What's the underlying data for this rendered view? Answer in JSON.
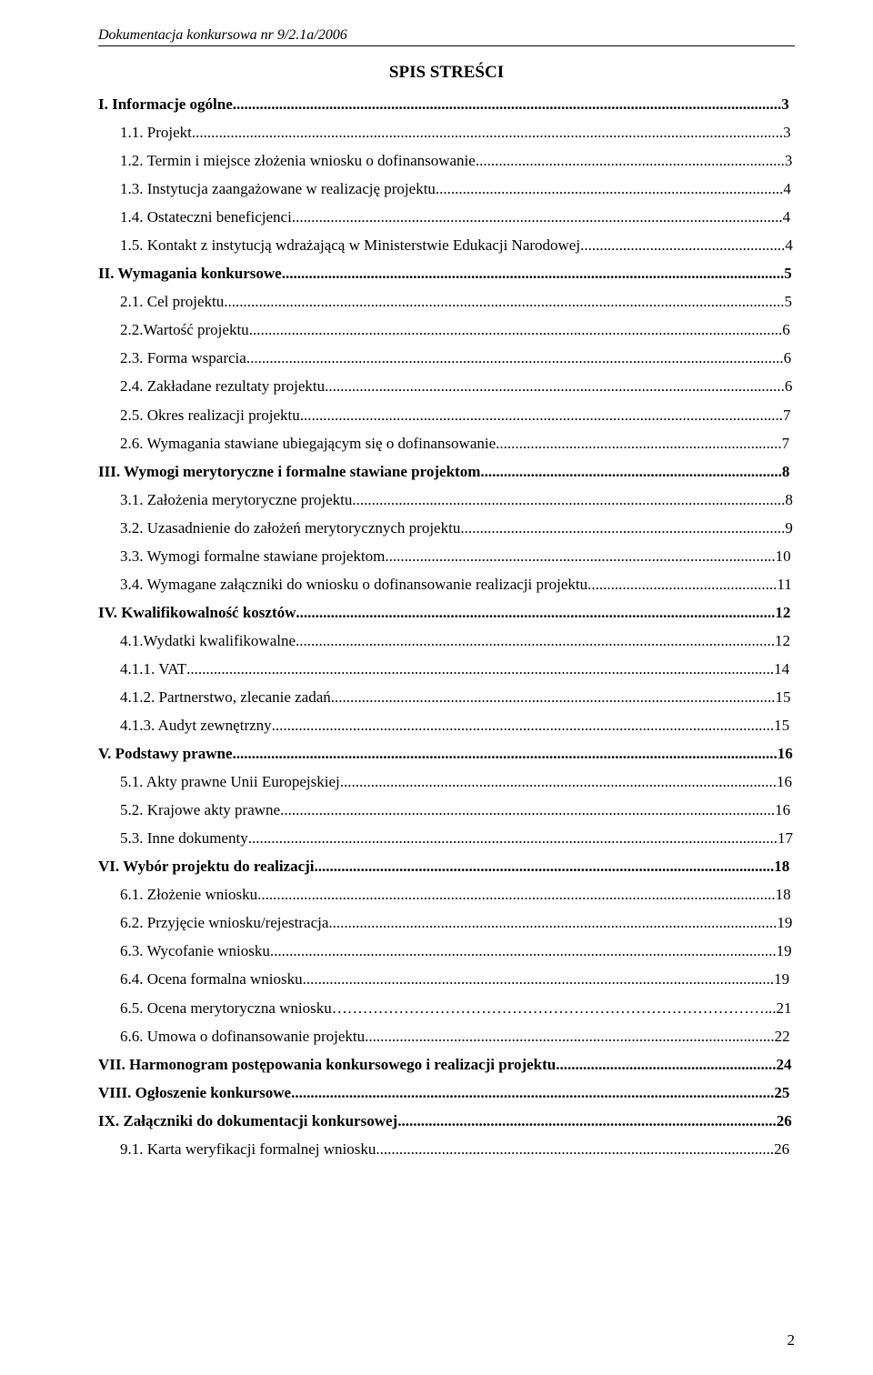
{
  "header": "Dokumentacja konkursowa nr 9/2.1a/2006",
  "title": "SPIS STREŚCI",
  "page_number": "2",
  "toc": [
    {
      "label": "I. Informacje ogólne",
      "page": "3",
      "bold": true,
      "indent": 0
    },
    {
      "label": "1.1. Projekt",
      "page": "3",
      "bold": false,
      "indent": 1
    },
    {
      "label": "1.2. Termin i miejsce złożenia wniosku o dofinansowanie",
      "page": "3",
      "bold": false,
      "indent": 1
    },
    {
      "label": "1.3. Instytucja zaangażowane w realizację projektu",
      "page": "4",
      "bold": false,
      "indent": 1
    },
    {
      "label": "1.4. Ostateczni beneficjenci",
      "page": "4",
      "bold": false,
      "indent": 1
    },
    {
      "label": "1.5. Kontakt z instytucją wdrażającą w Ministerstwie Edukacji Narodowej",
      "page": "4",
      "bold": false,
      "indent": 1
    },
    {
      "label": "II. Wymagania konkursowe",
      "page": "5",
      "bold": true,
      "indent": 0
    },
    {
      "label": "2.1. Cel projektu",
      "page": "5",
      "bold": false,
      "indent": 1
    },
    {
      "label": "2.2.Wartość projektu",
      "page": "6",
      "bold": false,
      "indent": 1
    },
    {
      "label": "2.3. Forma wsparcia",
      "page": "6",
      "bold": false,
      "indent": 1
    },
    {
      "label": "2.4. Zakładane rezultaty projektu",
      "page": "6",
      "bold": false,
      "indent": 1
    },
    {
      "label": "2.5. Okres realizacji projektu",
      "page": "7",
      "bold": false,
      "indent": 1
    },
    {
      "label": "2.6. Wymagania stawiane ubiegającym się o dofinansowanie",
      "page": "7",
      "bold": false,
      "indent": 1
    },
    {
      "label": "III. Wymogi merytoryczne i formalne stawiane projektom",
      "page": "8",
      "bold": true,
      "indent": 0
    },
    {
      "label": "3.1. Założenia merytoryczne projektu",
      "page": "8",
      "bold": false,
      "indent": 1
    },
    {
      "label": "3.2. Uzasadnienie do założeń merytorycznych projektu",
      "page": "9",
      "bold": false,
      "indent": 1
    },
    {
      "label": "3.3. Wymogi formalne stawiane projektom",
      "page": "10",
      "bold": false,
      "indent": 1
    },
    {
      "label": "3.4. Wymagane załączniki do wniosku o dofinansowanie realizacji projektu",
      "page": "11",
      "bold": false,
      "indent": 1
    },
    {
      "label": "IV. Kwalifikowalność kosztów",
      "page": "12",
      "bold": true,
      "indent": 0
    },
    {
      "label": "4.1.Wydatki kwalifikowalne",
      "page": "12",
      "bold": false,
      "indent": 1
    },
    {
      "label": "4.1.1. VAT",
      "page": "14",
      "bold": false,
      "indent": 1
    },
    {
      "label": "4.1.2. Partnerstwo, zlecanie zadań",
      "page": "15",
      "bold": false,
      "indent": 1
    },
    {
      "label": "4.1.3. Audyt zewnętrzny",
      "page": "15",
      "bold": false,
      "indent": 1
    },
    {
      "label": "V. Podstawy prawne",
      "page": "16",
      "bold": true,
      "indent": 0
    },
    {
      "label": "5.1. Akty prawne Unii Europejskiej",
      "page": "16",
      "bold": false,
      "indent": 1
    },
    {
      "label": "5.2. Krajowe akty prawne",
      "page": "16",
      "bold": false,
      "indent": 1
    },
    {
      "label": "5.3. Inne dokumenty",
      "page": "17",
      "bold": false,
      "indent": 1
    },
    {
      "label": "VI. Wybór projektu do realizacji",
      "page": "18",
      "bold": true,
      "indent": 0
    },
    {
      "label": "6.1. Złożenie wniosku",
      "page": "18",
      "bold": false,
      "indent": 1
    },
    {
      "label": "6.2. Przyjęcie wniosku/rejestracja",
      "page": "19",
      "bold": false,
      "indent": 1
    },
    {
      "label": "6.3. Wycofanie wniosku",
      "page": "19",
      "bold": false,
      "indent": 1
    },
    {
      "label": "6.4. Ocena formalna wniosku",
      "page": "19",
      "bold": false,
      "indent": 1
    },
    {
      "label": "6.5. Ocena merytoryczna wniosku",
      "page": "21",
      "bold": false,
      "indent": 1,
      "leader_dots": false
    },
    {
      "label": "6.6. Umowa o dofinansowanie projektu",
      "page": "22",
      "bold": false,
      "indent": 1
    },
    {
      "label": "VII. Harmonogram postępowania konkursowego i realizacji projektu",
      "page": "24",
      "bold": true,
      "indent": 0
    },
    {
      "label": "VIII. Ogłoszenie konkursowe",
      "page": "25",
      "bold": true,
      "indent": 0
    },
    {
      "label": "IX. Załączniki do dokumentacji konkursowej",
      "page": "26",
      "bold": true,
      "indent": 0
    },
    {
      "label": "9.1. Karta weryfikacji formalnej wniosku",
      "page": "26",
      "bold": false,
      "indent": 1
    }
  ]
}
